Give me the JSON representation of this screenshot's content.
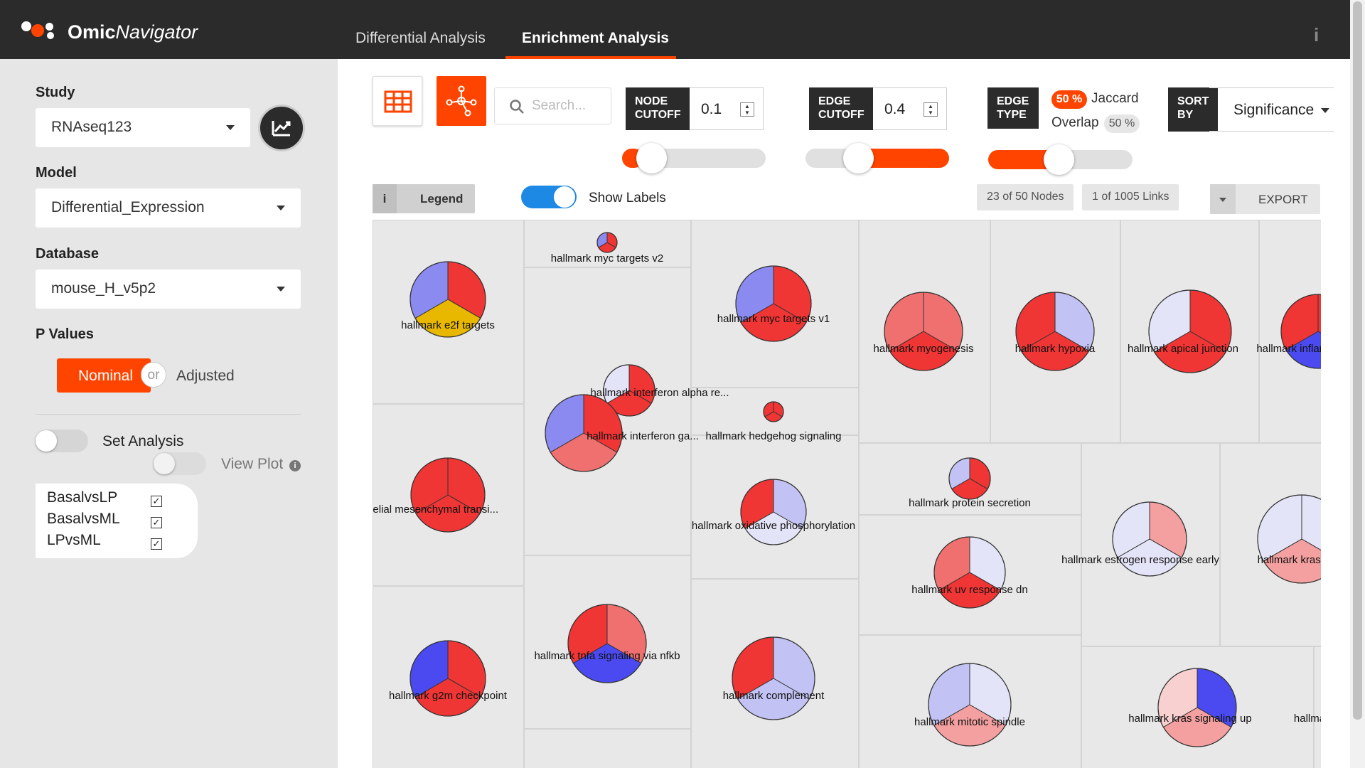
{
  "header": {
    "brand_bold": "Omic",
    "brand_italic": "Navigator",
    "tabs": [
      {
        "label": "Differential Analysis",
        "active": false
      },
      {
        "label": "Enrichment Analysis",
        "active": true
      }
    ],
    "info_glyph": "i",
    "accent_color": "#ff4400"
  },
  "sidebar": {
    "study_label": "Study",
    "study_value": "RNAseq123",
    "model_label": "Model",
    "model_value": "Differential_Expression",
    "database_label": "Database",
    "database_value": "mouse_H_v5p2",
    "pvalues_label": "P Values",
    "pvalue_selected": "Nominal",
    "pvalue_or": "or",
    "pvalue_other": "Adjusted",
    "set_analysis_label": "Set Analysis",
    "view_plot_label": "View Plot",
    "view_plot_icon": "i",
    "tests": [
      {
        "label": "BasalvsLP",
        "checked": true
      },
      {
        "label": "BasalvsML",
        "checked": true
      },
      {
        "label": "LPvsML",
        "checked": true
      }
    ]
  },
  "controls": {
    "search_placeholder": "Search...",
    "node_cutoff_label_1": "NODE",
    "node_cutoff_label_2": "CUTOFF",
    "node_cutoff_value": "0.1",
    "edge_cutoff_label_1": "EDGE",
    "edge_cutoff_label_2": "CUTOFF",
    "edge_cutoff_value": "0.4",
    "edge_type_label_1": "EDGE",
    "edge_type_label_2": "TYPE",
    "jaccard_pct": "50 %",
    "jaccard_label": "Jaccard",
    "overlap_label": "Overlap",
    "overlap_pct": "50 %",
    "sort_by_label_1": "SORT",
    "sort_by_label_2": "BY",
    "sort_by_value": "Significance",
    "legend_label": "Legend",
    "legend_icon": "i",
    "show_labels": "Show Labels",
    "nodes_count": "23 of 50 Nodes",
    "links_count": "1 of 1005 Links",
    "export_label": "EXPORT",
    "node_cutoff_slider": 0.1,
    "edge_cutoff_slider": 0.4,
    "edge_type_slider": 0.5
  },
  "network": {
    "nodes": [
      {
        "label": "hallmark e2f targets"
      },
      {
        "label": "hallmark myc targets v2"
      },
      {
        "label": "hallmark myc targets v1"
      },
      {
        "label": "hallmark myogenesis"
      },
      {
        "label": "hallmark hypoxia"
      },
      {
        "label": "hallmark apical junction"
      },
      {
        "label": "hallmark inflamm"
      },
      {
        "label": "hallmark interferon alpha re..."
      },
      {
        "label": "hallmark interferon ga..."
      },
      {
        "label": "hallmark hedgehog signaling"
      },
      {
        "label": "ark epithelial mesenchymal transi..."
      },
      {
        "label": "hallmark protein secretion"
      },
      {
        "label": "hallmark oxidative phosphorylation"
      },
      {
        "label": "hallmark estrogen response early"
      },
      {
        "label": "hallmark kras sign"
      },
      {
        "label": "hallmark uv response dn"
      },
      {
        "label": "hallmark g2m checkpoint"
      },
      {
        "label": "hallmark tnfa signaling via nfkb"
      },
      {
        "label": "hallmark complement"
      },
      {
        "label": "hallmark mitotic spindle"
      },
      {
        "label": "hallmark kras signaling up"
      },
      {
        "label": "hallma"
      }
    ],
    "colors": {
      "red": "#f03535",
      "salmon": "#f07070",
      "light_red": "#f4a0a0",
      "pink": "#f8d0d0",
      "blue": "#4a4af0",
      "mid_blue": "#8a8af0",
      "light_blue": "#c2c2f4",
      "pale_blue": "#e4e4f8",
      "gold": "#e8b800"
    }
  }
}
